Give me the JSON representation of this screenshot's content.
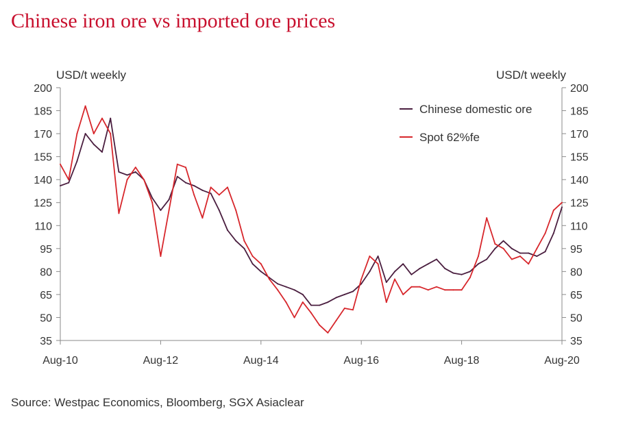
{
  "title": "Chinese iron ore vs imported ore prices",
  "left_unit": "USD/t weekly",
  "right_unit": "USD/t weekly",
  "source": "Source: Westpac Economics, Bloomberg, SGX Asiaclear",
  "chart_data": {
    "type": "line",
    "title": "Chinese iron ore vs imported ore prices",
    "ylabel": "USD/t weekly",
    "y2label": "USD/t weekly",
    "ylim": [
      35,
      200
    ],
    "yticks": [
      35,
      50,
      65,
      80,
      95,
      110,
      125,
      140,
      155,
      170,
      185,
      200
    ],
    "xlim": [
      "2010-08",
      "2020-08"
    ],
    "xticks": [
      "Aug-10",
      "Aug-12",
      "Aug-14",
      "Aug-16",
      "Aug-18",
      "Aug-20"
    ],
    "grid": false,
    "legend": "top-right",
    "series": [
      {
        "name": "Chinese domestic ore",
        "color": "#4a1e3f",
        "x": [
          "2010-08",
          "2010-10",
          "2010-12",
          "2011-02",
          "2011-04",
          "2011-06",
          "2011-08",
          "2011-10",
          "2011-12",
          "2012-02",
          "2012-04",
          "2012-06",
          "2012-08",
          "2012-10",
          "2012-12",
          "2013-02",
          "2013-04",
          "2013-06",
          "2013-08",
          "2013-10",
          "2013-12",
          "2014-02",
          "2014-04",
          "2014-06",
          "2014-08",
          "2014-10",
          "2014-12",
          "2015-02",
          "2015-04",
          "2015-06",
          "2015-08",
          "2015-10",
          "2015-12",
          "2016-02",
          "2016-04",
          "2016-06",
          "2016-08",
          "2016-10",
          "2016-12",
          "2017-02",
          "2017-04",
          "2017-06",
          "2017-08",
          "2017-10",
          "2017-12",
          "2018-02",
          "2018-04",
          "2018-06",
          "2018-08",
          "2018-10",
          "2018-12",
          "2019-02",
          "2019-04",
          "2019-06",
          "2019-08",
          "2019-10",
          "2019-12",
          "2020-02",
          "2020-04",
          "2020-06",
          "2020-08"
        ],
        "values": [
          136,
          138,
          152,
          170,
          163,
          158,
          180,
          145,
          143,
          145,
          140,
          128,
          120,
          127,
          142,
          138,
          136,
          133,
          131,
          120,
          107,
          100,
          95,
          85,
          80,
          76,
          72,
          70,
          68,
          65,
          58,
          58,
          60,
          63,
          65,
          67,
          72,
          80,
          90,
          73,
          80,
          85,
          78,
          82,
          85,
          88,
          82,
          79,
          78,
          80,
          85,
          88,
          95,
          100,
          95,
          92,
          92,
          90,
          93,
          105,
          122
        ]
      },
      {
        "name": "Spot 62%fe",
        "color": "#d7262b",
        "x": [
          "2010-08",
          "2010-10",
          "2010-12",
          "2011-02",
          "2011-04",
          "2011-06",
          "2011-08",
          "2011-10",
          "2011-12",
          "2012-02",
          "2012-04",
          "2012-06",
          "2012-08",
          "2012-10",
          "2012-12",
          "2013-02",
          "2013-04",
          "2013-06",
          "2013-08",
          "2013-10",
          "2013-12",
          "2014-02",
          "2014-04",
          "2014-06",
          "2014-08",
          "2014-10",
          "2014-12",
          "2015-02",
          "2015-04",
          "2015-06",
          "2015-08",
          "2015-10",
          "2015-12",
          "2016-02",
          "2016-04",
          "2016-06",
          "2016-08",
          "2016-10",
          "2016-12",
          "2017-02",
          "2017-04",
          "2017-06",
          "2017-08",
          "2017-10",
          "2017-12",
          "2018-02",
          "2018-04",
          "2018-06",
          "2018-08",
          "2018-10",
          "2018-12",
          "2019-02",
          "2019-04",
          "2019-06",
          "2019-08",
          "2019-10",
          "2019-12",
          "2020-02",
          "2020-04",
          "2020-06",
          "2020-08"
        ],
        "values": [
          150,
          140,
          170,
          188,
          170,
          180,
          170,
          118,
          140,
          148,
          140,
          125,
          90,
          120,
          150,
          148,
          130,
          115,
          135,
          130,
          135,
          120,
          100,
          90,
          85,
          75,
          68,
          60,
          50,
          60,
          53,
          45,
          40,
          48,
          56,
          55,
          75,
          90,
          85,
          60,
          75,
          65,
          70,
          70,
          68,
          70,
          68,
          68,
          68,
          76,
          90,
          115,
          98,
          95,
          88,
          90,
          85,
          95,
          105,
          120,
          125
        ]
      }
    ]
  }
}
